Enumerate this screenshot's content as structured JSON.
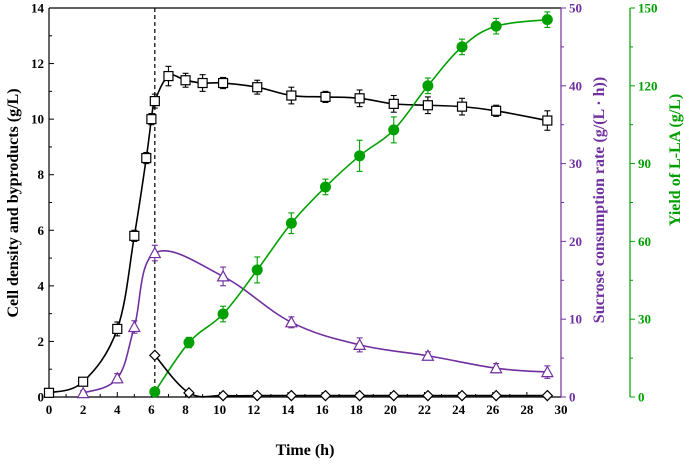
{
  "chart_data": {
    "type": "line",
    "xlabel": "Time (h)",
    "x_range": [
      0,
      30
    ],
    "x_ticks": [
      "0",
      "2",
      "4",
      "6",
      "8",
      "10",
      "12",
      "14",
      "16",
      "18",
      "20",
      "22",
      "24",
      "26",
      "28",
      "30"
    ],
    "left_axis": {
      "label": "Cell density and byproducts (g/L)",
      "range": [
        0,
        14
      ],
      "ticks": [
        "0",
        "2",
        "4",
        "6",
        "8",
        "10",
        "12",
        "14"
      ],
      "color": "#000000"
    },
    "right_axis_1": {
      "label": "Sucrose consumption rate (g/(L · h))",
      "range": [
        0,
        50
      ],
      "ticks": [
        "0",
        "10",
        "20",
        "30",
        "40",
        "50"
      ],
      "color": "#7030A0"
    },
    "right_axis_2": {
      "label": "Yield of L-LA (g/L)",
      "range": [
        0,
        150
      ],
      "ticks": [
        "0",
        "30",
        "60",
        "90",
        "120",
        "150"
      ],
      "color": "#00A000"
    },
    "vline_x": 6.2,
    "series": [
      {
        "marker": "square-open",
        "axis": "left",
        "color": "#000000",
        "x": [
          0,
          2,
          4,
          5,
          5.7,
          6,
          6.2,
          7,
          8,
          9,
          10.2,
          12.2,
          14.2,
          16.2,
          18.2,
          20.2,
          22.2,
          24.2,
          26.2,
          29.2
        ],
        "y": [
          0.15,
          0.55,
          2.45,
          5.8,
          8.6,
          10.0,
          10.65,
          11.55,
          11.4,
          11.3,
          11.3,
          11.15,
          10.85,
          10.8,
          10.75,
          10.55,
          10.5,
          10.45,
          10.3,
          9.95
        ],
        "err": [
          0.05,
          0.08,
          0.25,
          0.2,
          0.2,
          0.2,
          0.25,
          0.35,
          0.25,
          0.3,
          0.2,
          0.25,
          0.3,
          0.2,
          0.3,
          0.3,
          0.3,
          0.3,
          0.2,
          0.35
        ]
      },
      {
        "marker": "triangle-open",
        "axis": "right1",
        "color": "#7030A0",
        "x": [
          2,
          4,
          5,
          6.2,
          10.2,
          14.2,
          18.2,
          22.2,
          26.2,
          29.2
        ],
        "y": [
          0.5,
          2.4,
          9.0,
          18.5,
          15.5,
          9.6,
          6.7,
          5.3,
          3.7,
          3.2
        ],
        "err": [
          0.3,
          0.6,
          0.8,
          1.0,
          1.2,
          0.7,
          0.9,
          0.5,
          0.6,
          0.8
        ]
      },
      {
        "marker": "circle-filled",
        "axis": "right2",
        "color": "#00A000",
        "x": [
          6.2,
          8.2,
          10.2,
          12.2,
          14.2,
          16.2,
          18.2,
          20.2,
          22.2,
          24.2,
          26.2,
          29.2
        ],
        "y": [
          2,
          21,
          32,
          49,
          67,
          81,
          93,
          103,
          120,
          135,
          143,
          145.5
        ],
        "err": [
          1,
          2,
          3,
          5,
          4,
          3,
          6,
          5,
          3,
          3,
          3,
          3
        ]
      },
      {
        "marker": "diamond-open",
        "axis": "left",
        "color": "#000000",
        "x": [
          6.2,
          8.2,
          10.2,
          12.2,
          14.2,
          16.2,
          18.2,
          20.2,
          22.2,
          24.2,
          26.2,
          29.2
        ],
        "y": [
          1.5,
          0.15,
          0.05,
          0.05,
          0.05,
          0.05,
          0.05,
          0.05,
          0.05,
          0.05,
          0.05,
          0.05
        ],
        "err": [
          0,
          0,
          0,
          0,
          0,
          0,
          0,
          0,
          0,
          0,
          0,
          0
        ]
      }
    ]
  }
}
